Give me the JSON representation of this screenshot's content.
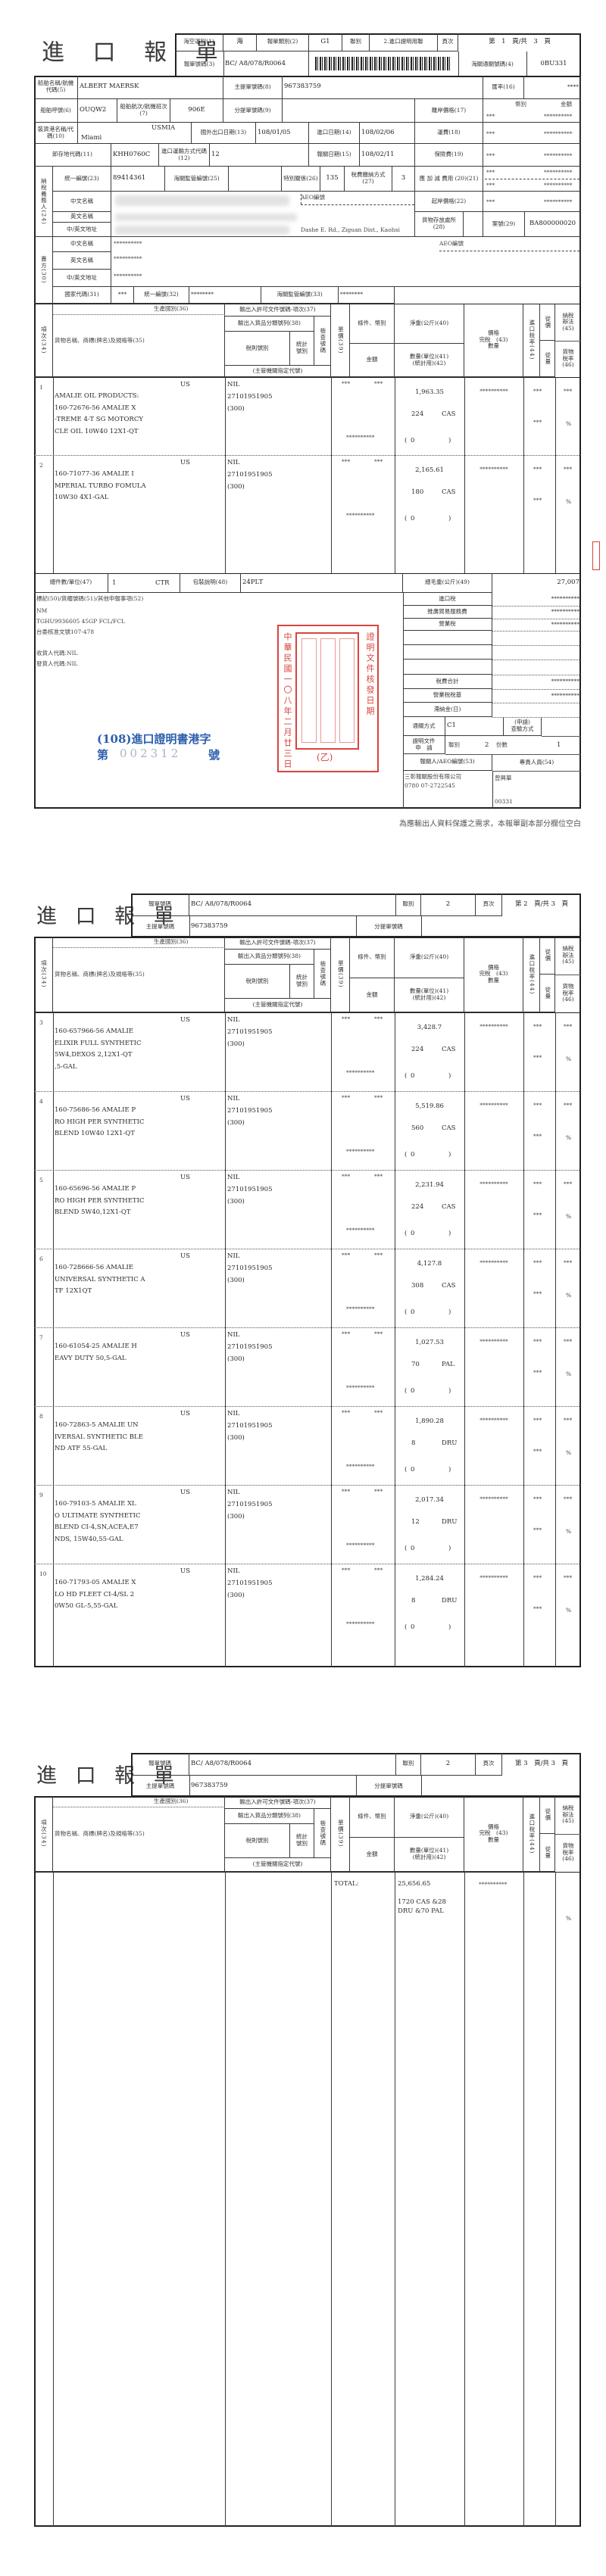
{
  "document_title": "進 口 報 單",
  "items_header": {
    "no": "項次(34)",
    "origin": "生產國別(36)",
    "description": "貨物名稱、商標(牌名)及規格等(35)",
    "permit": "輸出入許可文件號碼-項次(37)",
    "ccc": "輸出入貨品分類號列(38)",
    "tariff": "稅則號別",
    "stat_code": "統計\n號別",
    "inspection": "檢查號碼",
    "agency": "(主管機關指定代號)",
    "unit_price": "單價(39)",
    "terms": "條件、幣別",
    "amount": "金額",
    "net_weight": "淨重(公斤)(40)",
    "quantity": "數量(單位)(41)\n(統計用)(42)",
    "dutiable": "價格\n完稅　(43)\n數量",
    "import_rate": "進口稅率(44)",
    "ad_valorem": "從價",
    "specific": "從量",
    "tax_method": "納稅\n辦法\n(45)",
    "goods_tax_rate": "貨物\n稅率\n(46)"
  },
  "p1": {
    "header": {
      "transport_label": "海空運別(1)",
      "transport": "海",
      "type_label": "報單類別(2)",
      "type": "G1",
      "copy_label": "聯別",
      "copy": "2.進口證明用聯",
      "page_label": "頁次",
      "page": "第　1　頁/共　3　頁",
      "decl_no_label": "報單號碼(3)",
      "decl_no": "BC/ A8/078/R0064",
      "customs_no_label": "海關通關號碼(4)",
      "customs_no": "0BU331"
    },
    "vessel_label": "船舶名稱/航機代碼(5)",
    "vessel": "ALBERT MAERSK",
    "mbl_label": "主提單號碼(8)",
    "mbl": "967383759",
    "rate_label": "匯率(16)",
    "rate": "****",
    "callsign_label": "船舶呼號(6)",
    "callsign": "OUQW2",
    "voyage_label": "船舶航次/航機班次(7)",
    "voyage": "906E",
    "hbl_label": "分提單號碼(9)",
    "fob_label": "離岸價格(17)",
    "currency_label": "幣別",
    "amount_label": "金額",
    "fob_currency": "***",
    "fob_amount": "**********",
    "pol_label": "裝貨港名稱/代碼(10)",
    "pol_name": "Miami",
    "pol_code": "USMIA",
    "export_date_label": "國外出口日期(13)",
    "export_date": "108/01/05",
    "import_date_label": "進口日期(14)",
    "import_date": "108/02/06",
    "freight_label": "運費(18)",
    "freight_currency": "***",
    "freight_amount": "**********",
    "discharge_label": "卸存地代碼(11)",
    "discharge": "KHH0760C",
    "transport_mode_label": "進口運輸方式代碼(12)",
    "transport_mode": "12",
    "decl_date_label": "報關日期(15)",
    "decl_date": "108/02/11",
    "insurance_label": "保險費(19)",
    "insurance_currency": "***",
    "insurance_amount": "**********",
    "taxpayer_label": "納稅義務人(24)",
    "tax_id_label": "統一編號(23)",
    "tax_id": "89414361",
    "bonded_no_label": "海關監管編號(25)",
    "special_rel_label": "特別關係(26)",
    "special_rel": "135",
    "payment_label": "稅費繳納方式(27)",
    "payment": "3",
    "adjust_label": "應 加 減 費用 (20)(21)",
    "add_currency": "***",
    "add_amount": "**********",
    "sub_currency": "***",
    "sub_amount": "**********",
    "cn_name_label": "中文名稱",
    "en_name_label": "英文名稱",
    "address_label": "中/英文地址",
    "aeo_label": "AEO編號",
    "address_partial": "Dashe E. Rd., Ziguan Dist., Kaohsi",
    "cif_label": "起岸價格(22)",
    "cif_currency": "***",
    "cif_amount": "**********",
    "storage_label": "貨物存放處所(28)",
    "case_label": "案號(29)",
    "case": "BA800000020",
    "seller_label": "賣方(30)",
    "seller_cn": "**********",
    "seller_en": "**********",
    "seller_address": "**********",
    "country_label": "國家代碼(31)",
    "country": "***",
    "seller_id_label": "統一編號(32)",
    "seller_id": "********",
    "seller_bonded_label": "海關監管編號(33)",
    "seller_bonded": "********",
    "items": [
      {
        "no": "1",
        "origin": "US",
        "desc": [
          "AMALIE OIL PRODUCTS:",
          "160-72676-56 AMALIE X",
          "-TREME 4-T SG MOTORCY",
          "CLE OIL 10W40 12X1-QT"
        ],
        "permit": "NIL",
        "tariff": "27101951905",
        "agency": "(300)",
        "terms": "***",
        "currency": "***",
        "amount": "**********",
        "net_weight": "1,963.35",
        "qty": "224",
        "unit": "CAS",
        "stat_qty": "0",
        "dutiable": "**********",
        "import_rate": "***",
        "tax_method": "***",
        "specific_rate": "***",
        "goods_rate": "%"
      },
      {
        "no": "2",
        "origin": "US",
        "desc": [
          "160-71077-36 AMALIE I",
          "MPERIAL TURBO FOMULA",
          "10W30 4X1-GAL"
        ],
        "permit": "NIL",
        "tariff": "27101951905",
        "agency": "(300)",
        "terms": "***",
        "currency": "***",
        "amount": "**********",
        "net_weight": "2,165.61",
        "qty": "180",
        "unit": "CAS",
        "stat_qty": "0",
        "dutiable": "**********",
        "import_rate": "***",
        "tax_method": "***",
        "specific_rate": "***",
        "goods_rate": "%"
      }
    ],
    "total_pkgs_label": "總件數/單位(47)",
    "total_pkgs": "1",
    "total_pkgs_unit": "CTR",
    "packing_label": "包裝說明(48)",
    "packing": "24PLT",
    "gross_weight_label": "總毛重(公斤)(49)",
    "gross_weight": "27,007",
    "remarks_label": "標記(50)/貨櫃號碼(51)/其他申報事項(52)",
    "remarks": [
      "NM",
      "TGHU9936605 45GP FCL/FCL",
      "台委核准文號107-478",
      "",
      "收貨人代碼:NIL",
      "發貨人代碼:NIL"
    ],
    "tax": {
      "import_duty_label": "進口稅",
      "import_duty": "**********",
      "trade_fee_label": "推廣貿易服務費",
      "trade_fee": "**********",
      "business_tax_label": "營業稅",
      "business_tax": "**********",
      "total_label": "稅費合計",
      "total": "**********",
      "tax_base_label": "營業稅稅基",
      "tax_base": "**********",
      "late_fee_label": "滯納金(日)",
      "clearance_label": "通關方式",
      "clearance": "C1",
      "inspection_label": "(申請)\n查驗方式",
      "cert_label": "證明文件\n申　請",
      "cert_copy_label": "聯別",
      "cert_copy": "2",
      "cert_count_label": "份數",
      "cert_count": "1",
      "broker_label": "報關人/AEO編號(53)",
      "officer_label": "專責人員(54)",
      "broker_name": "三彰報關股份有限公司",
      "broker_code": "0780 07-2722545",
      "officer_name": "曾興華",
      "officer_code": "00331"
    },
    "blue_stamp": {
      "line1": "(108)進口證明書港字",
      "prefix": "第",
      "number": "002312",
      "suffix": "號"
    },
    "red_seal": {
      "date": "中華民國一〇八年二月廿三日",
      "caption": "證明文件核發日期",
      "grade": "(乙)"
    },
    "footnote": "為應輸出人資料保護之需求，本報單副本部分欄位空白"
  },
  "p2": {
    "header": {
      "decl_no_label": "報單號碼",
      "decl_no": "BC/ A8/078/R0064",
      "copy_label": "聯別",
      "copy": "2",
      "page_label": "頁次",
      "page": "第 2　頁/共 3　頁",
      "mbl_label": "主提單號碼",
      "mbl": "967383759",
      "hbl_label": "分提單號碼"
    },
    "items": [
      {
        "no": "3",
        "origin": "US",
        "desc": [
          "160-657966-56 AMALIE",
          "ELIXIR FULL SYNTHETIC",
          "5W4,DEXOS 2,12X1-QT",
          ",5-GAL"
        ],
        "permit": "NIL",
        "tariff": "27101951905",
        "agency": "(300)",
        "terms": "***",
        "currency": "***",
        "amount": "**********",
        "net_weight": "3,428.7",
        "qty": "224",
        "unit": "CAS",
        "stat_qty": "0",
        "dutiable": "**********",
        "import_rate": "***",
        "tax_method": "***",
        "specific_rate": "***",
        "goods_rate": "%"
      },
      {
        "no": "4",
        "origin": "US",
        "desc": [
          "160-75686-56 AMALIE P",
          "RO HIGH PER SYNTHETIC",
          "BLEND 10W40 12X1-QT"
        ],
        "permit": "NIL",
        "tariff": "27101951905",
        "agency": "(300)",
        "terms": "***",
        "currency": "***",
        "amount": "**********",
        "net_weight": "5,519.86",
        "qty": "560",
        "unit": "CAS",
        "stat_qty": "0",
        "dutiable": "**********",
        "import_rate": "***",
        "tax_method": "***",
        "specific_rate": "***",
        "goods_rate": "%"
      },
      {
        "no": "5",
        "origin": "US",
        "desc": [
          "160-65696-56 AMALIE P",
          "RO HIGH PER SYNTHETIC",
          "BLEND 5W40,12X1-QT"
        ],
        "permit": "NIL",
        "tariff": "27101951905",
        "agency": "(300)",
        "terms": "***",
        "currency": "***",
        "amount": "**********",
        "net_weight": "2,231.94",
        "qty": "224",
        "unit": "CAS",
        "stat_qty": "0",
        "dutiable": "**********",
        "import_rate": "***",
        "tax_method": "***",
        "specific_rate": "***",
        "goods_rate": "%"
      },
      {
        "no": "6",
        "origin": "US",
        "desc": [
          "160-728666-56 AMALIE",
          "UNIVERSAL SYNTHETIC A",
          "TF 12X1QT"
        ],
        "permit": "NIL",
        "tariff": "27101951905",
        "agency": "(300)",
        "terms": "***",
        "currency": "***",
        "amount": "**********",
        "net_weight": "4,127.8",
        "qty": "308",
        "unit": "CAS",
        "stat_qty": "0",
        "dutiable": "**********",
        "import_rate": "***",
        "tax_method": "***",
        "specific_rate": "***",
        "goods_rate": "%"
      },
      {
        "no": "7",
        "origin": "US",
        "desc": [
          "160-61054-25 AMALIE H",
          "EAVY DUTY 50,5-GAL"
        ],
        "permit": "NIL",
        "tariff": "27101951905",
        "agency": "(300)",
        "terms": "***",
        "currency": "***",
        "amount": "**********",
        "net_weight": "1,027.53",
        "qty": "70",
        "unit": "PAL",
        "stat_qty": "0",
        "dutiable": "**********",
        "import_rate": "***",
        "tax_method": "***",
        "specific_rate": "***",
        "goods_rate": "%"
      },
      {
        "no": "8",
        "origin": "US",
        "desc": [
          "160-72863-5 AMALIE UN",
          "IVERSAL SYNTHETIC BLE",
          "ND ATF 55-GAL"
        ],
        "permit": "NIL",
        "tariff": "27101951905",
        "agency": "(300)",
        "terms": "***",
        "currency": "***",
        "amount": "**********",
        "net_weight": "1,890.28",
        "qty": "8",
        "unit": "DRU",
        "stat_qty": "0",
        "dutiable": "**********",
        "import_rate": "***",
        "tax_method": "***",
        "specific_rate": "***",
        "goods_rate": "%"
      },
      {
        "no": "9",
        "origin": "US",
        "desc": [
          "160-79103-5 AMALIE XL",
          "O ULTIMATE SYNTHETIC",
          "BLEND CI-4,SN,ACEA,E7",
          "NDS, 15W40,55-GAL"
        ],
        "permit": "NIL",
        "tariff": "27101951905",
        "agency": "(300)",
        "terms": "***",
        "currency": "***",
        "amount": "**********",
        "net_weight": "2,017.34",
        "qty": "12",
        "unit": "DRU",
        "stat_qty": "0",
        "dutiable": "**********",
        "import_rate": "***",
        "tax_method": "***",
        "specific_rate": "***",
        "goods_rate": "%"
      },
      {
        "no": "10",
        "origin": "US",
        "desc": [
          "160-71793-05 AMALIE X",
          "LO HD FLEET CI-4/SL 2",
          "0W50 GL-5,55-GAL"
        ],
        "permit": "NIL",
        "tariff": "27101951905",
        "agency": "(300)",
        "terms": "***",
        "currency": "***",
        "amount": "**********",
        "net_weight": "1,284.24",
        "qty": "8",
        "unit": "DRU",
        "stat_qty": "0",
        "dutiable": "**********",
        "import_rate": "***",
        "tax_method": "***",
        "specific_rate": "***",
        "goods_rate": "%"
      }
    ]
  },
  "p3": {
    "header": {
      "decl_no_label": "報單號碼",
      "decl_no": "BC/ A8/078/R0064",
      "copy_label": "聯別",
      "copy": "2",
      "page_label": "頁次",
      "page": "第 3　頁/共 3　頁",
      "mbl_label": "主提單號碼",
      "mbl": "967383759",
      "hbl_label": "分提單號碼"
    },
    "total_label": "TOTAL:",
    "total_net_weight": "25,656.65",
    "total_qty_line1": "1720 CAS &28",
    "total_qty_line2": "DRU &70 PAL",
    "total_dutiable": "**********",
    "total_goods_rate": "%"
  }
}
